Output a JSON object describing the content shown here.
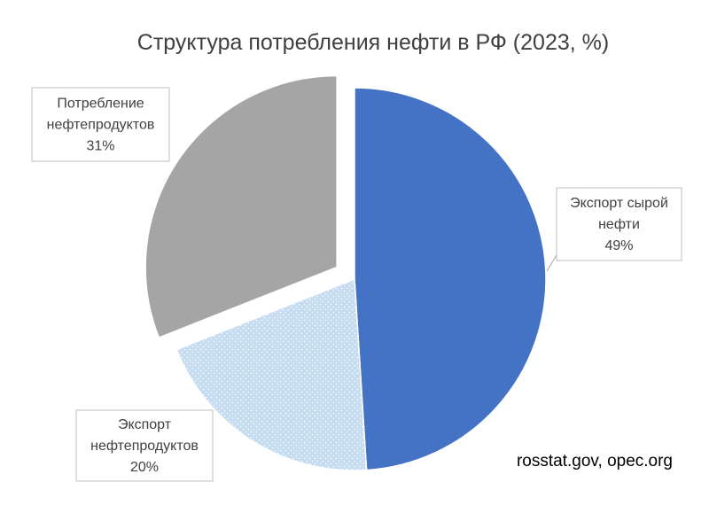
{
  "chart_data": {
    "type": "pie",
    "title": "Структура потребления нефти в РФ (2023, %)",
    "slices": [
      {
        "name_lines": [
          "Экспорт сырой",
          "нефти"
        ],
        "value_label": "49%",
        "value": 49,
        "color": "#4472c4",
        "pattern": "none",
        "exploded": false
      },
      {
        "name_lines": [
          "Экспорт",
          "нефтепродуктов"
        ],
        "value_label": "20%",
        "value": 20,
        "color": "#c5dcf1",
        "pattern": "dots",
        "exploded": false
      },
      {
        "name_lines": [
          "Потребление",
          "нефтепродуктов"
        ],
        "value_label": "31%",
        "value": 31,
        "color": "#a5a5a5",
        "pattern": "none",
        "exploded": true
      }
    ],
    "legend": "none",
    "data_labels": "callouts-with-category-and-percent",
    "source": "rosstat.gov, opec.org"
  }
}
